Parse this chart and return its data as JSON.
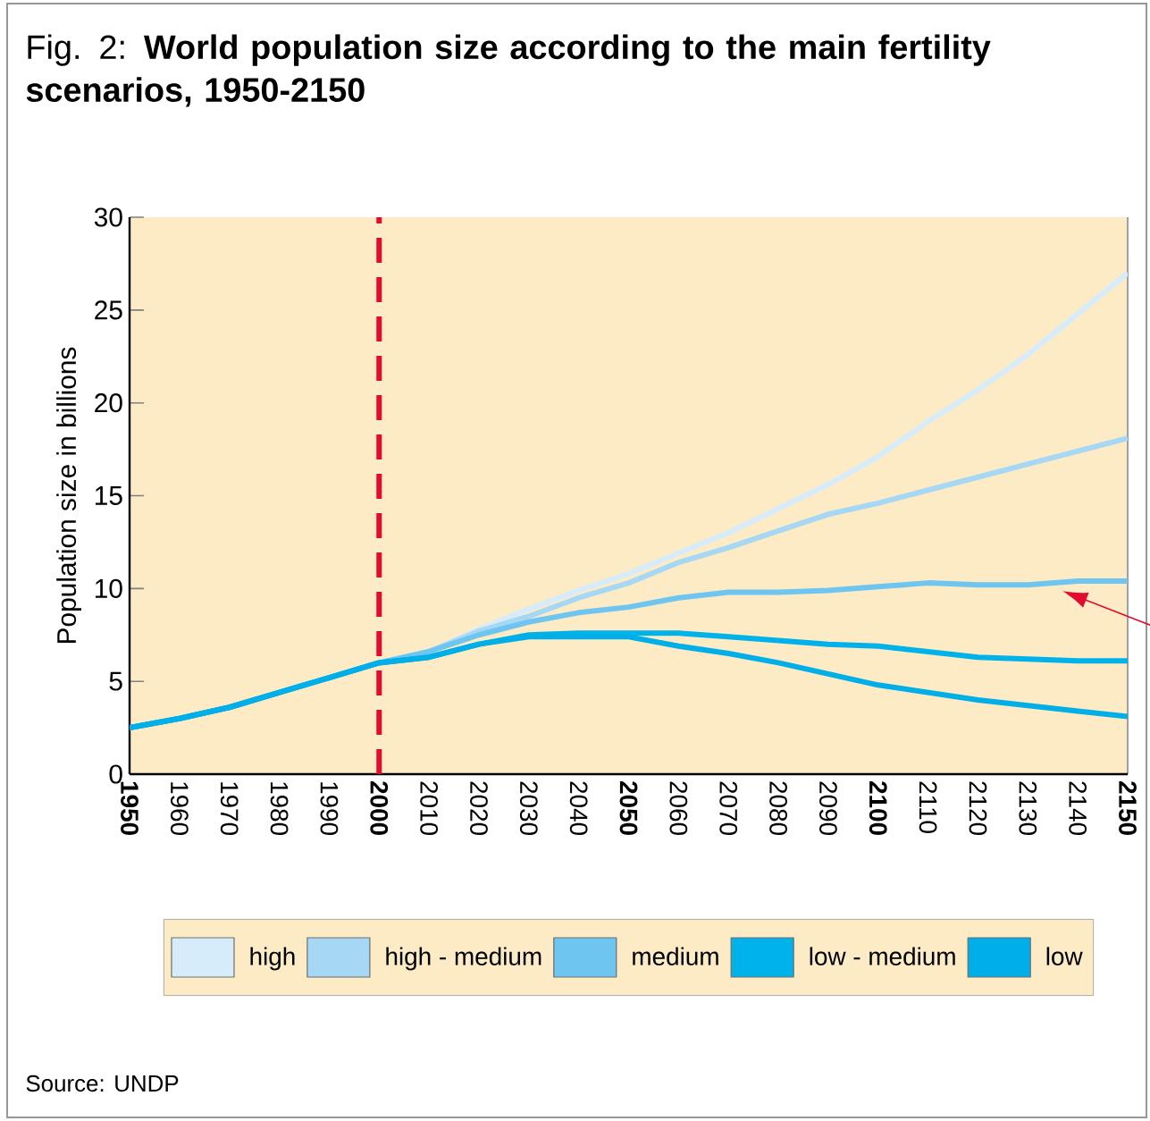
{
  "chart_data": {
    "type": "line",
    "title": "Fig. 2: **World population size according to the main fertility scenarios, 1950-2150**",
    "ylabel": "Population size in billions",
    "annotations": [
      "Source: UNDP"
    ],
    "x": [
      1950,
      1960,
      1970,
      1980,
      1990,
      2000,
      2010,
      2020,
      2030,
      2040,
      2050,
      2060,
      2070,
      2080,
      2090,
      2100,
      2110,
      2120,
      2130,
      2140,
      2150
    ],
    "series": [
      {
        "name": "high",
        "color": "#d6ecfa",
        "values": [
          2.5,
          3.0,
          3.6,
          4.4,
          5.2,
          6.0,
          6.6,
          7.8,
          8.9,
          9.9,
          10.8,
          11.9,
          13.0,
          14.3,
          15.6,
          17.1,
          19.0,
          20.7,
          22.6,
          24.8,
          27.0
        ]
      },
      {
        "name": "high - medium",
        "color": "#a6d8f5",
        "values": [
          2.5,
          3.0,
          3.6,
          4.4,
          5.2,
          6.0,
          6.6,
          7.7,
          8.5,
          9.5,
          10.3,
          11.4,
          12.2,
          13.1,
          14.0,
          14.6,
          15.3,
          16.0,
          16.7,
          17.4,
          18.1
        ]
      },
      {
        "name": "medium",
        "color": "#6ec6f0",
        "values": [
          2.5,
          3.0,
          3.6,
          4.4,
          5.2,
          6.0,
          6.6,
          7.5,
          8.2,
          8.7,
          9.0,
          9.5,
          9.8,
          9.8,
          9.9,
          10.1,
          10.3,
          10.2,
          10.2,
          10.4,
          10.4
        ]
      },
      {
        "name": "low - medium",
        "color": "#00b2ea",
        "values": [
          2.5,
          3.0,
          3.6,
          4.4,
          5.2,
          6.0,
          6.3,
          7.0,
          7.5,
          7.6,
          7.6,
          7.6,
          7.4,
          7.2,
          7.0,
          6.9,
          6.6,
          6.3,
          6.2,
          6.1,
          6.1
        ]
      },
      {
        "name": "low",
        "color": "#00aee8",
        "values": [
          2.5,
          3.0,
          3.6,
          4.4,
          5.2,
          6.0,
          6.3,
          7.0,
          7.4,
          7.4,
          7.4,
          6.9,
          6.5,
          6.0,
          5.4,
          4.8,
          4.4,
          4.0,
          3.7,
          3.4,
          3.1
        ]
      }
    ],
    "xlim": [
      1950,
      2150
    ],
    "ylim": [
      0,
      30
    ],
    "xticks": [
      {
        "value": 1950,
        "label": "**1950**"
      },
      1960,
      1970,
      1980,
      1990,
      {
        "value": 2000,
        "label": "**2000**"
      },
      2010,
      2020,
      2030,
      2040,
      {
        "value": 2050,
        "label": "**2050**"
      },
      2060,
      2070,
      2080,
      2090,
      {
        "value": 2100,
        "label": "**2100**"
      },
      2110,
      2120,
      2130,
      2140,
      {
        "value": 2150,
        "label": "**2150**"
      }
    ],
    "yticks": [
      0,
      5,
      10,
      15,
      20,
      25,
      30
    ],
    "ref_lines": [
      {
        "axis": "x",
        "value": 2000,
        "color": "#e30b2e",
        "line_style": "dashed"
      }
    ],
    "legend": "bottom",
    "grid": false,
    "marker": "none"
  }
}
